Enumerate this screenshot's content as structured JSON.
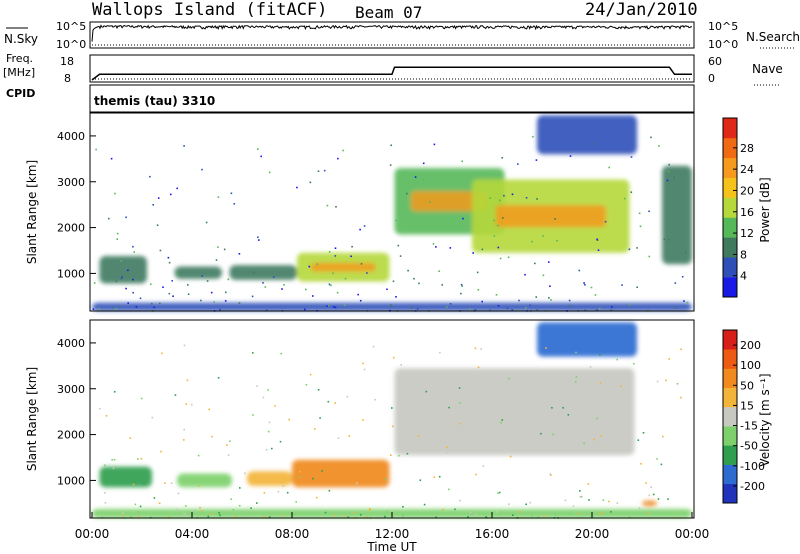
{
  "header": {
    "station": "Wallops Island (fitACF)",
    "beam": "Beam 07",
    "date": "24/Jan/2010"
  },
  "noise_panel": {
    "left_label": "N.Sky",
    "right_label": "N.Search",
    "tick_top_left": "10^5",
    "tick_bottom_left": "10^0",
    "tick_top_right": "10^5",
    "tick_bottom_right": "10^0"
  },
  "freq_panel": {
    "left_label_1": "Freq.",
    "left_label_2": "[MHz]",
    "tick_top_left": "18",
    "tick_bottom_left": "8",
    "tick_top_right": "60",
    "tick_bottom_right": "0",
    "right_label": "Nave",
    "cpid_label": "CPID",
    "program": "themis (tau) 3310"
  },
  "x_axis": {
    "label": "Time UT",
    "ticks": [
      "00:00",
      "04:00",
      "08:00",
      "12:00",
      "16:00",
      "20:00",
      "00:00"
    ]
  },
  "range_axis": {
    "label": "Slant Range [km]",
    "ticks": [
      "1000",
      "2000",
      "3000",
      "4000"
    ]
  },
  "power_scale": {
    "label": "Power [dB]",
    "ticks": [
      "4",
      "8",
      "12",
      "16",
      "20",
      "24",
      "28"
    ],
    "colors": [
      "#1a1ae6",
      "#2f4fb8",
      "#3f7a5f",
      "#57b85a",
      "#b5d83a",
      "#f5c21c",
      "#f59a1c",
      "#ef6a12",
      "#e02818"
    ]
  },
  "velocity_scale": {
    "label": "Velocity [m s⁻¹]",
    "ticks": [
      "200",
      "100",
      "50",
      "15",
      "-15",
      "-50",
      "-100",
      "-200"
    ],
    "colors": [
      "#2233bb",
      "#2d6bd1",
      "#2f9e4e",
      "#7dd06b",
      "#c8c8c2",
      "#f3b43a",
      "#f08a1c",
      "#ee5a12",
      "#d81e18"
    ]
  },
  "chart_data": [
    {
      "type": "line",
      "title": "Wallops Island (fitACF)",
      "panel": "noise",
      "series": [
        {
          "name": "N.Sky",
          "x": [
            0,
            0.3,
            2,
            4,
            6,
            8,
            10,
            12,
            14,
            16,
            18,
            20,
            22,
            24
          ],
          "y": [
            10,
            30000,
            28000,
            22000,
            25000,
            20000,
            26000,
            24000,
            22000,
            25000,
            21000,
            23000,
            18000,
            26000
          ]
        },
        {
          "name": "N.Search",
          "x": [
            0,
            24
          ],
          "y": [
            1,
            1
          ]
        }
      ],
      "ylim": [
        1,
        100000
      ],
      "yscale": "log"
    },
    {
      "type": "line",
      "panel": "frequency",
      "series": [
        {
          "name": "Freq.",
          "x": [
            0,
            0.3,
            12,
            12.1,
            23.1,
            23.3,
            24
          ],
          "y": [
            8,
            10.5,
            10.5,
            13.5,
            13.5,
            10.5,
            10.5
          ]
        },
        {
          "name": "Nave",
          "x": [
            0,
            24
          ],
          "y": [
            0,
            0
          ]
        }
      ],
      "ylim_freq": [
        8,
        18
      ],
      "ylim_nave": [
        0,
        60
      ]
    },
    {
      "type": "heatmap",
      "title": "Beam 07",
      "panel": "power",
      "xlabel": "Time UT",
      "ylabel": "Slant Range [km]",
      "xlim": [
        0,
        24
      ],
      "ylim": [
        180,
        4500
      ],
      "zlabel": "Power [dB]",
      "zlim": [
        0,
        30
      ],
      "regions": [
        {
          "t": [
            0.3,
            2.2
          ],
          "r": [
            780,
            1380
          ],
          "dB": 8
        },
        {
          "t": [
            3.3,
            5.2
          ],
          "r": [
            880,
            1150
          ],
          "dB": 7
        },
        {
          "t": [
            5.5,
            8.2
          ],
          "r": [
            860,
            1180
          ],
          "dB": 9
        },
        {
          "t": [
            8.2,
            11.9
          ],
          "r": [
            820,
            1450
          ],
          "dB": 14
        },
        {
          "t": [
            12.1,
            16.5
          ],
          "r": [
            1850,
            3300
          ],
          "dB": 13
        },
        {
          "t": [
            15.2,
            21.5
          ],
          "r": [
            1450,
            3050
          ],
          "dB": 15
        },
        {
          "t": [
            17.8,
            21.8
          ],
          "r": [
            3600,
            4450
          ],
          "dB": 6
        },
        {
          "t": [
            22.8,
            24.0
          ],
          "r": [
            1200,
            3350
          ],
          "dB": 7
        },
        {
          "t": [
            0.0,
            24.0
          ],
          "r": [
            180,
            360
          ],
          "dB": 5
        }
      ]
    },
    {
      "type": "heatmap",
      "panel": "velocity",
      "xlabel": "Time UT",
      "ylabel": "Slant Range [km]",
      "xlim": [
        0,
        24
      ],
      "ylim": [
        180,
        4500
      ],
      "zlabel": "Velocity [m s⁻¹]",
      "zlim": [
        -200,
        200
      ],
      "regions": [
        {
          "t": [
            0.3,
            2.4
          ],
          "r": [
            850,
            1300
          ],
          "v": 40
        },
        {
          "t": [
            3.4,
            5.6
          ],
          "r": [
            850,
            1150
          ],
          "v": 30
        },
        {
          "t": [
            6.2,
            8.0
          ],
          "r": [
            880,
            1200
          ],
          "v": -25
        },
        {
          "t": [
            8.0,
            11.9
          ],
          "r": [
            850,
            1450
          ],
          "v": -60
        },
        {
          "t": [
            12.1,
            21.7
          ],
          "r": [
            1550,
            3450
          ],
          "v": 0
        },
        {
          "t": [
            17.8,
            21.8
          ],
          "r": [
            3700,
            4450
          ],
          "v": 150
        },
        {
          "t": [
            22.0,
            22.6
          ],
          "r": [
            440,
            560
          ],
          "v": -60
        },
        {
          "t": [
            0.0,
            24.0
          ],
          "r": [
            180,
            380
          ],
          "v": 20
        }
      ]
    }
  ]
}
